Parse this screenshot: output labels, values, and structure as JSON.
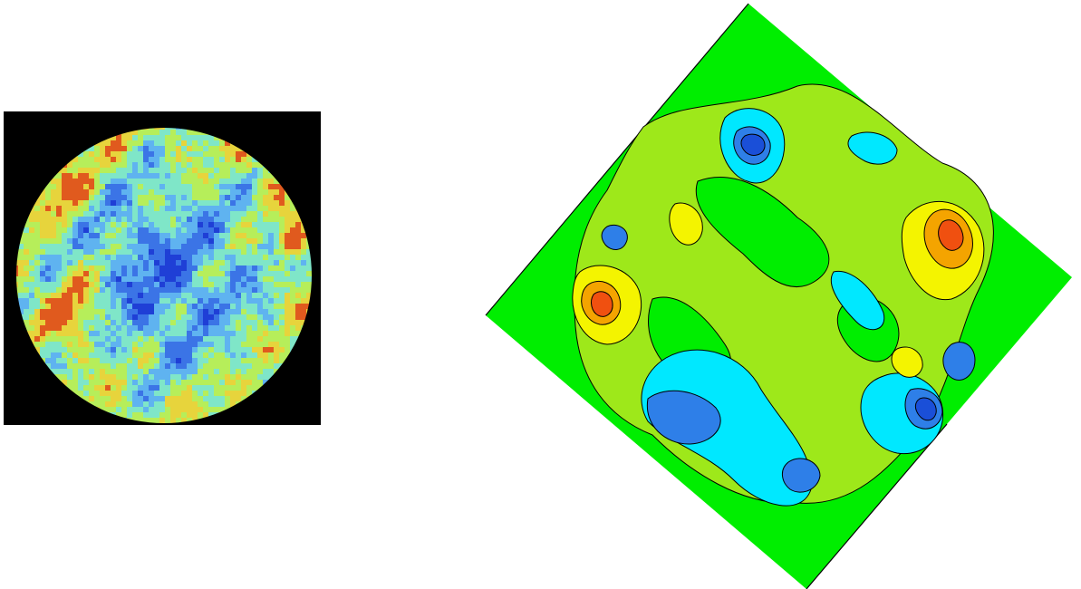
{
  "figures": [
    {
      "name": "measured-heatmap",
      "type": "pixelated-circular-heatmap",
      "background": "#000000",
      "palette": [
        "#1f3fd6",
        "#3b74e6",
        "#5fb3f0",
        "#7fe6c8",
        "#b6ee5a",
        "#e7d43c",
        "#e05a1e"
      ],
      "hotspot_color": "#e03a10"
    },
    {
      "name": "contour-map",
      "type": "filled-contour",
      "rotation_deg": 45,
      "background": "#00ee00",
      "border": "#000000",
      "levels": [
        {
          "label": "deep-blue",
          "color": "#1a4fd8"
        },
        {
          "label": "blue",
          "color": "#2e7fe8"
        },
        {
          "label": "cyan",
          "color": "#00e8ff"
        },
        {
          "label": "green",
          "color": "#00ee00"
        },
        {
          "label": "yellow-green",
          "color": "#9ee81a"
        },
        {
          "label": "yellow",
          "color": "#f4f400"
        },
        {
          "label": "orange",
          "color": "#f4a400"
        },
        {
          "label": "red-orange",
          "color": "#f05010"
        }
      ]
    }
  ]
}
